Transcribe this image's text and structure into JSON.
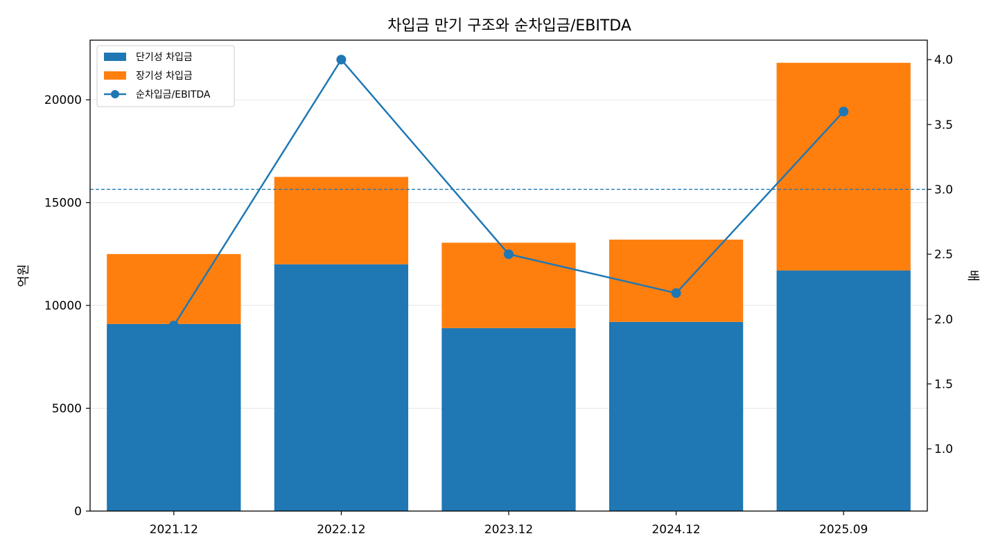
{
  "chart_data": {
    "type": "bar",
    "title": "차입금 만기 구조와 순차입금/EBITDA",
    "categories": [
      "2021.12",
      "2022.12",
      "2023.12",
      "2024.12",
      "2025.09"
    ],
    "stacked": true,
    "series": [
      {
        "name": "단기성 차입금",
        "type": "bar",
        "axis": "left",
        "color": "#1f77b4",
        "values": [
          9100,
          12000,
          8900,
          9200,
          11700
        ]
      },
      {
        "name": "장기성 차입금",
        "type": "bar",
        "axis": "left",
        "color": "#ff7f0e",
        "values": [
          3400,
          4250,
          4150,
          4000,
          10100
        ]
      },
      {
        "name": "순차입금/EBITDA",
        "type": "line",
        "axis": "right",
        "color": "#1f77b4",
        "values": [
          1.95,
          4.0,
          2.5,
          2.2,
          3.6
        ]
      }
    ],
    "ylabel": "억원",
    "y2label": "배",
    "ylim": [
      0,
      22900
    ],
    "y2lim": [
      0.52,
      4.15
    ],
    "yticks": [
      "0",
      "5000",
      "10000",
      "15000",
      "20000"
    ],
    "y2ticks": [
      "1.0",
      "1.5",
      "2.0",
      "2.5",
      "3.0",
      "3.5",
      "4.0"
    ],
    "reference_line": {
      "axis": "right",
      "value": 3.0,
      "style": "dashed",
      "color": "#1f77b4"
    },
    "grid": "horizontal",
    "legend_position": "top-left"
  }
}
